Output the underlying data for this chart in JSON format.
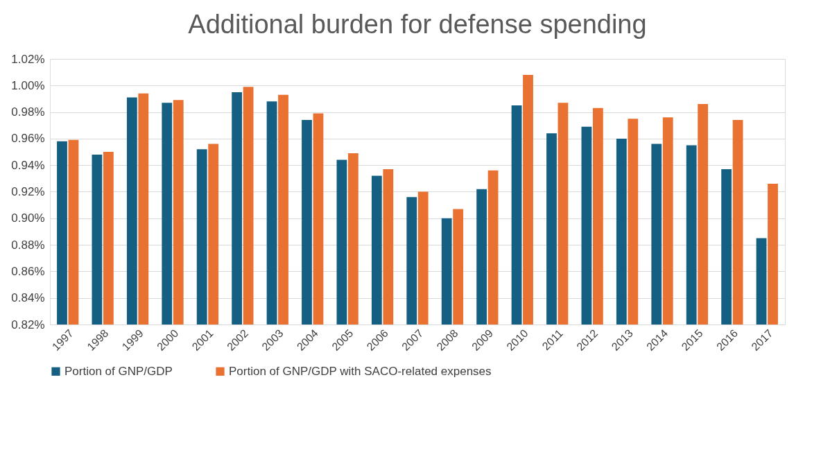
{
  "chart_data": {
    "type": "bar",
    "title": "Additional burden for defense spending",
    "categories": [
      "1997",
      "1998",
      "1999",
      "2000",
      "2001",
      "2002",
      "2003",
      "2004",
      "2005",
      "2006",
      "2007",
      "2008",
      "2009",
      "2010",
      "2011",
      "2012",
      "2013",
      "2014",
      "2015",
      "2016",
      "2017"
    ],
    "series": [
      {
        "name": "Portion of GNP/GDP",
        "color": "#156082",
        "values": [
          0.958,
          0.948,
          0.991,
          0.987,
          0.952,
          0.995,
          0.988,
          0.974,
          0.944,
          0.932,
          0.916,
          0.9,
          0.922,
          0.985,
          0.964,
          0.969,
          0.96,
          0.956,
          0.955,
          0.937,
          0.885
        ]
      },
      {
        "name": "Portion of GNP/GDP with SACO-related expenses",
        "color": "#e97132",
        "values": [
          0.959,
          0.95,
          0.994,
          0.989,
          0.956,
          0.999,
          0.993,
          0.979,
          0.949,
          0.937,
          0.92,
          0.907,
          0.936,
          1.008,
          0.987,
          0.983,
          0.975,
          0.976,
          0.986,
          0.974,
          0.926
        ]
      }
    ],
    "ylim": [
      0.82,
      1.02
    ],
    "yticks": [
      {
        "value": 0.82,
        "label": "0.82%"
      },
      {
        "value": 0.84,
        "label": "0.84%"
      },
      {
        "value": 0.86,
        "label": "0.86%"
      },
      {
        "value": 0.88,
        "label": "0.88%"
      },
      {
        "value": 0.9,
        "label": "0.90%"
      },
      {
        "value": 0.92,
        "label": "0.92%"
      },
      {
        "value": 0.94,
        "label": "0.94%"
      },
      {
        "value": 0.96,
        "label": "0.96%"
      },
      {
        "value": 0.98,
        "label": "0.98%"
      },
      {
        "value": 1.0,
        "label": "1.00%"
      },
      {
        "value": 1.02,
        "label": "1.02%"
      }
    ],
    "grid": "y",
    "legend": "bottom"
  }
}
